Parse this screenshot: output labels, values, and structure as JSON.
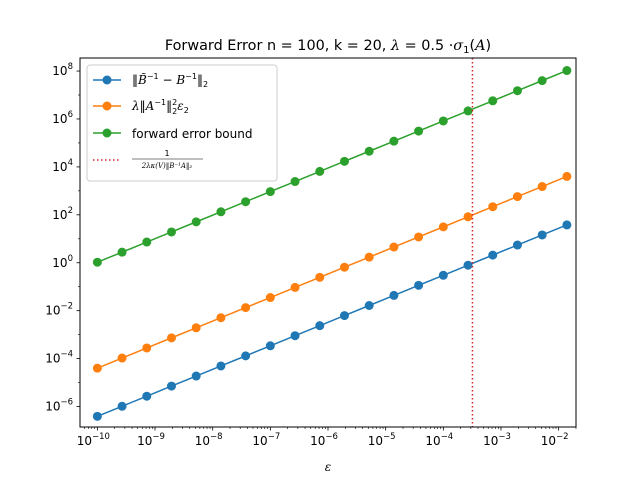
{
  "chart_data": {
    "type": "line",
    "title_prefix": "Forward Error n = 100, k = 20, ",
    "title_lambda": "λ",
    "title_mid": " = 0.5 ·",
    "title_sigma": "σ",
    "title_sub": "1",
    "title_arg": "(",
    "title_A": "A",
    "title_close": ")",
    "xlabel": "ε",
    "xscale": "log",
    "yscale": "log",
    "xlim": [
      5e-11,
      0.02
    ],
    "ylim": [
      1.4e-07,
      350000000.0
    ],
    "grid": false,
    "legend_position": "top-left",
    "x": [
      1e-10,
      2.6827e-10,
      7.1969e-10,
      1.9307e-09,
      5.1795e-09,
      1.3895e-08,
      3.7276e-08,
      1e-07,
      2.6827e-07,
      7.1969e-07,
      1.9307e-06,
      5.1795e-06,
      1.3895e-05,
      3.7276e-05,
      0.0001,
      0.00026827,
      0.00071969,
      0.0019307,
      0.0051795,
      0.013895
    ],
    "x_note_scale": 0.72,
    "series": [
      {
        "name": "‖B̃⁻¹ − B⁻¹‖₂",
        "color": "#1f77b4",
        "y_start": 3.9e-07,
        "y_end": 38
      },
      {
        "name": "λ‖A⁻¹‖₂² ε₂",
        "color": "#ff7f0e",
        "y_start": 4e-05,
        "y_end": 4000
      },
      {
        "name": "forward error bound",
        "color": "#2ca02c",
        "y_start": 1.05,
        "y_end": 105000000.0
      }
    ],
    "vline": {
      "x": 0.00032,
      "color": "#d62728",
      "style": "dotted",
      "name": "1 / (2λκ(V)‖B⁻¹A‖₂)"
    },
    "xticks": [
      {
        "base": "10",
        "exp": "−10",
        "value": 1e-10
      },
      {
        "base": "10",
        "exp": "−9",
        "value": 1e-09
      },
      {
        "base": "10",
        "exp": "−8",
        "value": 1e-08
      },
      {
        "base": "10",
        "exp": "−7",
        "value": 1e-07
      },
      {
        "base": "10",
        "exp": "−6",
        "value": 1e-06
      },
      {
        "base": "10",
        "exp": "−5",
        "value": 1e-05
      },
      {
        "base": "10",
        "exp": "−4",
        "value": 0.0001
      },
      {
        "base": "10",
        "exp": "−3",
        "value": 0.001
      },
      {
        "base": "10",
        "exp": "−2",
        "value": 0.01
      }
    ],
    "yticks": [
      {
        "base": "10",
        "exp": "−6",
        "value": 1e-06
      },
      {
        "base": "10",
        "exp": "−4",
        "value": 0.0001
      },
      {
        "base": "10",
        "exp": "−2",
        "value": 0.01
      },
      {
        "base": "10",
        "exp": "0",
        "value": 1
      },
      {
        "base": "10",
        "exp": "2",
        "value": 100.0
      },
      {
        "base": "10",
        "exp": "4",
        "value": 10000.0
      },
      {
        "base": "10",
        "exp": "6",
        "value": 1000000.0
      },
      {
        "base": "10",
        "exp": "8",
        "value": 100000000.0
      }
    ],
    "legend": {
      "s1_part1": "‖",
      "s1_B_tilde": "B̃",
      "s1_sup1": "−1",
      "s1_part2": " − ",
      "s1_B": "B",
      "s1_sup2": "−1",
      "s1_part3": "‖",
      "s1_sub": "2",
      "s2_lambda": "λ",
      "s2_norm_open": "‖",
      "s2_A": "A",
      "s2_sup": "−1",
      "s2_norm_close": "‖",
      "s2_sup2": "2",
      "s2_sub2": "2",
      "s2_eps": "ε",
      "s2_sub_eps": "2",
      "s3": "forward error bound",
      "v_num": "1",
      "v_den": "2λκ(V)‖B⁻¹A‖₂"
    }
  }
}
